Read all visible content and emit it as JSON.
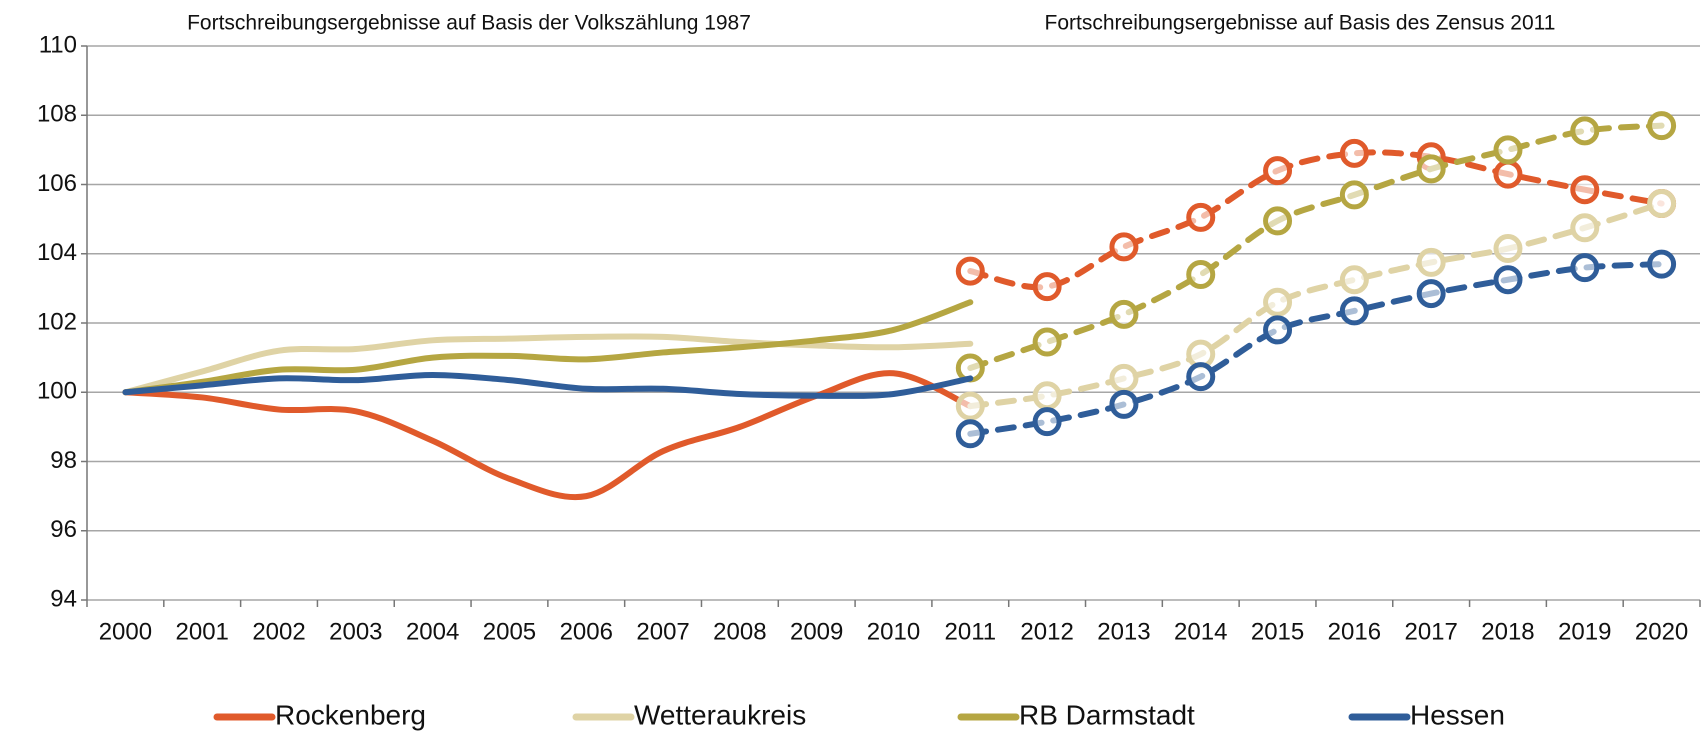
{
  "chart_data": {
    "type": "line",
    "annotations": [
      "Fortschreibungsergebnisse auf Basis der Volkszählung 1987",
      "Fortschreibungsergebnisse auf Basis des Zensus 2011"
    ],
    "categories": [
      "2000",
      "2001",
      "2002",
      "2003",
      "2004",
      "2005",
      "2006",
      "2007",
      "2008",
      "2009",
      "2010",
      "2011",
      "2012",
      "2013",
      "2014",
      "2015",
      "2016",
      "2017",
      "2018",
      "2019",
      "2020"
    ],
    "ylim": [
      94,
      110
    ],
    "yticks": [
      94,
      96,
      98,
      100,
      102,
      104,
      106,
      108,
      110
    ],
    "grid": true,
    "legend": "bottom",
    "series": [
      {
        "name": "Rockenberg",
        "color": "#e05a2b",
        "values": [
          100,
          99.85,
          99.5,
          99.45,
          98.6,
          97.5,
          97.0,
          98.3,
          99.0,
          99.9,
          100.55,
          99.6,
          null,
          null,
          null,
          null,
          null,
          null,
          null,
          null,
          null
        ],
        "census_values": [
          null,
          null,
          null,
          null,
          null,
          null,
          null,
          null,
          null,
          null,
          null,
          103.5,
          103.05,
          104.2,
          105.05,
          106.4,
          106.9,
          106.8,
          106.3,
          105.85,
          105.45
        ]
      },
      {
        "name": "Wetteraukreis",
        "color": "#dfd3a5",
        "values": [
          100,
          100.6,
          101.2,
          101.25,
          101.5,
          101.55,
          101.6,
          101.6,
          101.45,
          101.35,
          101.3,
          101.4,
          null,
          null,
          null,
          null,
          null,
          null,
          null,
          null,
          null
        ],
        "census_values": [
          null,
          null,
          null,
          null,
          null,
          null,
          null,
          null,
          null,
          null,
          null,
          99.6,
          99.9,
          100.4,
          101.1,
          102.6,
          103.25,
          103.75,
          104.15,
          104.75,
          105.45
        ]
      },
      {
        "name": "RB Darmstadt",
        "color": "#b5a642",
        "values": [
          100,
          100.3,
          100.65,
          100.65,
          101.0,
          101.05,
          100.95,
          101.15,
          101.3,
          101.5,
          101.8,
          102.6,
          null,
          null,
          null,
          null,
          null,
          null,
          null,
          null,
          null
        ],
        "census_values": [
          null,
          null,
          null,
          null,
          null,
          null,
          null,
          null,
          null,
          null,
          null,
          100.7,
          101.45,
          102.25,
          103.4,
          104.95,
          105.7,
          106.45,
          107.0,
          107.55,
          107.7
        ]
      },
      {
        "name": "Hessen",
        "color": "#2f5d99",
        "values": [
          100,
          100.2,
          100.4,
          100.35,
          100.5,
          100.35,
          100.1,
          100.1,
          99.95,
          99.9,
          99.95,
          100.4,
          null,
          null,
          null,
          null,
          null,
          null,
          null,
          null,
          null
        ],
        "census_values": [
          null,
          null,
          null,
          null,
          null,
          null,
          null,
          null,
          null,
          null,
          null,
          98.8,
          99.15,
          99.65,
          100.45,
          101.8,
          102.35,
          102.85,
          103.25,
          103.6,
          103.7
        ]
      }
    ]
  }
}
